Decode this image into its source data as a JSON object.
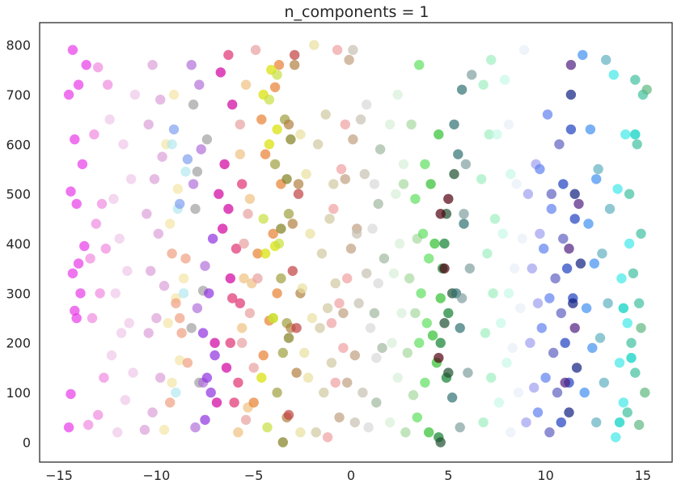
{
  "chart_data": {
    "type": "scatter",
    "title": "n_components = 1",
    "xlabel": "",
    "ylabel": "",
    "xlim": [
      -16,
      16.5
    ],
    "ylim": [
      -40,
      845
    ],
    "xticks": [
      -15,
      -10,
      -5,
      0,
      5,
      10,
      15
    ],
    "xtick_labels": [
      "−15",
      "−10",
      "−5",
      "0",
      "5",
      "10",
      "15"
    ],
    "yticks": [
      0,
      100,
      200,
      300,
      400,
      500,
      600,
      700,
      800
    ],
    "ytick_labels": [
      "0",
      "100",
      "200",
      "300",
      "400",
      "500",
      "600",
      "700",
      "800"
    ],
    "grid": false,
    "legend": "none",
    "marker_alpha": 0.7,
    "series": [
      {
        "color": "#e83be8",
        "x": [
          -14.5,
          -14.4,
          -14.2,
          -13.9,
          -14.3,
          -14.0,
          -13.7,
          -14.1,
          -14.4,
          -13.8,
          -14.2,
          -14.5,
          -14.0,
          -13.6,
          -14.3,
          -14.1
        ],
        "y": [
          30,
          97,
          265,
          300,
          340,
          360,
          395,
          480,
          505,
          560,
          610,
          700,
          720,
          760,
          790,
          250
        ]
      },
      {
        "color": "#f08ae0",
        "x": [
          -13.5,
          -13.0,
          -12.7,
          -13.3,
          -12.9,
          -13.4,
          -12.6,
          -13.1,
          -12.8,
          -13.2,
          -12.5,
          -13.0
        ],
        "y": [
          35,
          55,
          130,
          250,
          300,
          370,
          390,
          440,
          480,
          620,
          720,
          755
        ]
      },
      {
        "color": "#f0c8e8",
        "x": [
          -12.0,
          -11.6,
          -11.2,
          -12.3,
          -11.8,
          -11.4,
          -12.1,
          -11.5,
          -11.9,
          -12.2,
          -11.3,
          -11.7,
          -12.4,
          -11.1
        ],
        "y": [
          20,
          85,
          140,
          175,
          220,
          240,
          300,
          345,
          410,
          490,
          530,
          600,
          650,
          700
        ]
      },
      {
        "color": "#dca0d8",
        "x": [
          -10.6,
          -10.2,
          -9.8,
          -10.4,
          -10.0,
          -9.6,
          -10.3,
          -9.9,
          -10.5,
          -10.1,
          -9.7,
          -10.4,
          -9.8,
          -10.2
        ],
        "y": [
          25,
          60,
          130,
          220,
          250,
          315,
          345,
          420,
          460,
          530,
          575,
          640,
          690,
          760
        ]
      },
      {
        "color": "#f3e6a6",
        "x": [
          -9.6,
          -9.2,
          -8.8,
          -9.4,
          -9.0,
          -8.6,
          -9.3,
          -8.9,
          -9.5,
          -9.1
        ],
        "y": [
          25,
          120,
          165,
          240,
          290,
          330,
          440,
          510,
          600,
          700
        ]
      },
      {
        "color": "#f0a080",
        "x": [
          -9.3,
          -8.7,
          -9.0,
          -8.5,
          -9.2,
          -8.8,
          -8.4
        ],
        "y": [
          80,
          220,
          280,
          370,
          380,
          250,
          160
        ]
      },
      {
        "color": "#b3e8f0",
        "x": [
          -9.0,
          -8.6,
          -8.9,
          -8.5,
          -9.2
        ],
        "y": [
          100,
          300,
          470,
          545,
          600
        ]
      },
      {
        "color": "#80a0f0",
        "x": [
          -8.8,
          -8.4,
          -9.1
        ],
        "y": [
          480,
          570,
          630
        ]
      },
      {
        "color": "#a0a0a0",
        "x": [
          -7.8,
          -8.2,
          -7.6,
          -8.0,
          -7.9,
          -7.4,
          -8.1
        ],
        "y": [
          120,
          230,
          305,
          470,
          545,
          610,
          680
        ]
      },
      {
        "color": "#b070d8",
        "x": [
          -8.0,
          -7.6,
          -7.9,
          -7.5,
          -8.1,
          -7.7,
          -7.8,
          -8.2
        ],
        "y": [
          30,
          120,
          270,
          355,
          520,
          590,
          720,
          760
        ]
      },
      {
        "color": "#9030e0",
        "x": [
          -7.5,
          -7.2,
          -7.4,
          -7.0,
          -7.6,
          -7.3,
          -7.1
        ],
        "y": [
          45,
          100,
          130,
          175,
          220,
          300,
          410
        ]
      },
      {
        "color": "#d000a0",
        "x": [
          -6.9,
          -6.4,
          -7.0,
          -6.2,
          -6.6,
          -6.3,
          -6.8,
          -6.5,
          -6.1,
          -6.7
        ],
        "y": [
          80,
          150,
          200,
          330,
          430,
          470,
          500,
          560,
          680,
          745
        ]
      },
      {
        "color": "#e03070",
        "x": [
          -6.0,
          -5.8,
          -6.2,
          -5.7,
          -6.1,
          -5.9,
          -5.6,
          -6.3
        ],
        "y": [
          80,
          120,
          200,
          280,
          290,
          390,
          520,
          780
        ]
      },
      {
        "color": "#f0c080",
        "x": [
          -5.8,
          -5.3,
          -5.6,
          -5.1,
          -5.5,
          -5.2,
          -5.7,
          -5.4
        ],
        "y": [
          20,
          70,
          230,
          320,
          330,
          490,
          580,
          720
        ]
      },
      {
        "color": "#e8a0a0",
        "x": [
          -5.4,
          -5.0,
          -5.6,
          -5.2,
          -4.8,
          -5.5,
          -5.3,
          -5.7,
          -4.9
        ],
        "y": [
          45,
          150,
          200,
          260,
          330,
          400,
          460,
          640,
          790
        ]
      },
      {
        "color": "#e88030",
        "x": [
          -5.0,
          -4.5,
          -4.2,
          -3.8,
          -4.8,
          -4.0,
          -3.6,
          -4.4,
          -4.6,
          -3.9,
          -3.7
        ],
        "y": [
          80,
          175,
          245,
          300,
          380,
          420,
          520,
          580,
          650,
          715,
          760
        ]
      },
      {
        "color": "#d8e000",
        "x": [
          -4.6,
          -4.0,
          -4.4,
          -3.9,
          -4.2,
          -3.8,
          -4.5,
          -4.1
        ],
        "y": [
          130,
          250,
          380,
          395,
          600,
          630,
          700,
          750
        ]
      },
      {
        "color": "#c8e040",
        "x": [
          -4.3,
          -4.0,
          -3.7,
          -4.5,
          -4.2,
          -3.8
        ],
        "y": [
          30,
          250,
          400,
          450,
          690,
          740
        ]
      },
      {
        "color": "#a0a040",
        "x": [
          -3.8,
          -3.5,
          -3.3,
          -3.6,
          -3.2,
          -3.9,
          -3.4
        ],
        "y": [
          100,
          180,
          240,
          330,
          460,
          560,
          650
        ]
      },
      {
        "color": "#808020",
        "x": [
          -3.5,
          -3.2,
          -3.6,
          -3.3,
          -3.1
        ],
        "y": [
          0,
          210,
          430,
          530,
          610
        ]
      },
      {
        "color": "#b08040",
        "x": [
          -3.3,
          -2.8,
          -3.1,
          -2.6,
          -3.0,
          -2.7,
          -3.2,
          -2.9
        ],
        "y": [
          50,
          140,
          230,
          300,
          440,
          520,
          640,
          760
        ]
      },
      {
        "color": "#c04040",
        "x": [
          -3.2,
          -2.8,
          -3.0,
          -2.7,
          -2.9
        ],
        "y": [
          55,
          230,
          345,
          500,
          780
        ]
      },
      {
        "color": "#e8e0a0",
        "x": [
          -2.6,
          -2.2,
          -2.4,
          -2.0,
          -2.5,
          -2.1,
          -2.3,
          -2.6,
          -1.9
        ],
        "y": [
          20,
          130,
          180,
          250,
          310,
          420,
          540,
          620,
          800
        ]
      },
      {
        "color": "#d0c8a0",
        "x": [
          -1.8,
          -1.4,
          -1.0,
          -1.6,
          -1.2,
          -0.8,
          -1.5,
          -1.1,
          -0.9,
          -1.7,
          -1.3
        ],
        "y": [
          20,
          100,
          160,
          230,
          270,
          320,
          380,
          450,
          520,
          600,
          660
        ]
      },
      {
        "color": "#f0a0a0",
        "x": [
          -1.2,
          -0.8,
          -0.4,
          -1.0,
          -0.6,
          -0.2,
          -0.9,
          -0.5,
          -0.3,
          -0.7
        ],
        "y": [
          10,
          120,
          190,
          240,
          280,
          330,
          470,
          550,
          640,
          790
        ]
      },
      {
        "color": "#c0a080",
        "x": [
          -0.6,
          -0.2,
          0.2,
          -0.4,
          0.0,
          0.3,
          -0.3,
          0.1,
          -0.1
        ],
        "y": [
          50,
          120,
          175,
          260,
          390,
          430,
          530,
          610,
          770
        ]
      },
      {
        "color": "#c8c0b0",
        "x": [
          0.2,
          0.6,
          0.4,
          0.8,
          0.3,
          0.7,
          0.5,
          0.1
        ],
        "y": [
          40,
          100,
          280,
          340,
          420,
          540,
          650,
          790
        ]
      },
      {
        "color": "#d8d8d8",
        "x": [
          0.9,
          1.3,
          1.0,
          1.4,
          1.1,
          1.2,
          0.8
        ],
        "y": [
          30,
          170,
          230,
          320,
          430,
          520,
          680
        ]
      },
      {
        "color": "#a0b8a0",
        "x": [
          1.3,
          1.6,
          1.2,
          1.7,
          1.4,
          1.5
        ],
        "y": [
          80,
          190,
          260,
          370,
          480,
          590
        ]
      },
      {
        "color": "#d8f0d8",
        "x": [
          2.0,
          2.4,
          2.1,
          2.6,
          2.2,
          2.5,
          2.3,
          2.7,
          2.0,
          2.4
        ],
        "y": [
          40,
          130,
          200,
          260,
          340,
          400,
          500,
          560,
          640,
          700
        ]
      },
      {
        "color": "#a8d8a0",
        "x": [
          2.8,
          3.2,
          2.9,
          3.3,
          3.0,
          3.4,
          2.7,
          3.1
        ],
        "y": [
          20,
          95,
          180,
          260,
          330,
          410,
          520,
          640
        ]
      },
      {
        "color": "#60e060",
        "x": [
          3.4,
          3.8,
          3.5,
          3.9,
          3.6,
          4.0,
          3.7,
          3.3,
          3.8,
          3.5
        ],
        "y": [
          50,
          120,
          200,
          240,
          300,
          370,
          420,
          490,
          560,
          760
        ]
      },
      {
        "color": "#30c030",
        "x": [
          4.0,
          4.4,
          4.2,
          4.6,
          4.3,
          4.1,
          4.5
        ],
        "y": [
          20,
          160,
          215,
          290,
          400,
          520,
          620
        ]
      },
      {
        "color": "#108030",
        "x": [
          4.5,
          4.9,
          4.6,
          5.0,
          4.7,
          4.8
        ],
        "y": [
          10,
          130,
          200,
          260,
          350,
          400
        ]
      },
      {
        "color": "#205030",
        "x": [
          4.6,
          5.0,
          4.8,
          5.2,
          4.9,
          5.3
        ],
        "y": [
          0,
          140,
          240,
          300,
          460,
          540
        ]
      },
      {
        "color": "#500010",
        "x": [
          4.5,
          4.8,
          4.6,
          5.0
        ],
        "y": [
          170,
          350,
          460,
          490
        ]
      },
      {
        "color": "#307070",
        "x": [
          5.2,
          5.6,
          5.4,
          5.8,
          5.5,
          5.3,
          5.7
        ],
        "y": [
          90,
          230,
          300,
          440,
          580,
          640,
          710
        ]
      },
      {
        "color": "#80a0a0",
        "x": [
          5.6,
          6.0,
          5.7,
          6.1,
          5.8,
          5.9,
          6.2
        ],
        "y": [
          30,
          140,
          290,
          350,
          460,
          560,
          740
        ]
      },
      {
        "color": "#a0f0c0",
        "x": [
          6.8,
          7.2,
          6.9,
          7.3,
          7.0,
          7.4,
          6.7,
          7.1,
          6.8,
          7.2
        ],
        "y": [
          40,
          130,
          220,
          300,
          380,
          450,
          530,
          620,
          720,
          770
        ]
      },
      {
        "color": "#c8f8e8",
        "x": [
          7.6,
          8.0,
          7.7,
          8.1,
          7.8,
          8.2,
          7.5,
          7.9
        ],
        "y": [
          80,
          160,
          240,
          300,
          420,
          540,
          620,
          730
        ]
      },
      {
        "color": "#e8f0f8",
        "x": [
          8.2,
          8.6,
          8.3,
          8.7,
          8.4,
          8.8,
          8.5,
          8.1,
          8.9
        ],
        "y": [
          20,
          100,
          190,
          270,
          350,
          410,
          520,
          640,
          790
        ]
      },
      {
        "color": "#a0a0f0",
        "x": [
          9.0,
          9.4,
          9.2,
          9.6,
          9.3,
          9.7,
          9.1,
          9.5
        ],
        "y": [
          40,
          110,
          200,
          280,
          350,
          420,
          500,
          560
        ]
      },
      {
        "color": "#6080f0",
        "x": [
          9.6,
          10.0,
          9.8,
          10.2,
          9.9,
          10.3,
          9.7,
          10.1
        ],
        "y": [
          60,
          130,
          230,
          290,
          390,
          470,
          550,
          660
        ]
      },
      {
        "color": "#6060c0",
        "x": [
          10.2,
          10.6,
          10.4,
          10.8,
          10.5,
          10.9,
          10.3,
          10.7
        ],
        "y": [
          20,
          100,
          180,
          260,
          330,
          410,
          500,
          600
        ]
      },
      {
        "color": "#2040c0",
        "x": [
          10.8,
          11.2,
          11.0,
          11.4,
          11.1,
          11.5,
          10.9,
          11.3
        ],
        "y": [
          40,
          120,
          200,
          290,
          350,
          450,
          520,
          630
        ]
      },
      {
        "color": "#102080",
        "x": [
          11.2,
          11.6,
          11.4,
          11.8,
          11.5,
          11.3
        ],
        "y": [
          60,
          150,
          280,
          360,
          500,
          700
        ]
      },
      {
        "color": "#502080",
        "x": [
          11.0,
          11.5,
          11.2,
          11.7,
          11.3
        ],
        "y": [
          120,
          230,
          390,
          480,
          760
        ]
      },
      {
        "color": "#4090f0",
        "x": [
          12.0,
          12.4,
          12.1,
          12.5,
          12.2,
          12.6,
          12.3,
          11.9
        ],
        "y": [
          100,
          190,
          270,
          360,
          440,
          530,
          630,
          780
        ]
      },
      {
        "color": "#60b0c0",
        "x": [
          12.6,
          13.0,
          12.8,
          13.2,
          12.9,
          13.3,
          12.7,
          13.1
        ],
        "y": [
          40,
          120,
          210,
          280,
          380,
          470,
          550,
          770
        ]
      },
      {
        "color": "#40e8e8",
        "x": [
          13.6,
          14.0,
          13.8,
          14.2,
          13.9,
          14.3,
          13.7,
          14.1,
          13.5
        ],
        "y": [
          10,
          80,
          160,
          240,
          330,
          400,
          510,
          620,
          740
        ]
      },
      {
        "color": "#40c0a0",
        "x": [
          14.2,
          14.6,
          14.4,
          14.8,
          14.5,
          14.9,
          14.3,
          14.7,
          15.0,
          14.6
        ],
        "y": [
          60,
          140,
          200,
          280,
          340,
          420,
          500,
          600,
          700,
          730
        ]
      },
      {
        "color": "#00d0c0",
        "x": [
          13.8,
          14.4,
          14.0,
          14.6
        ],
        "y": [
          40,
          170,
          270,
          620
        ]
      },
      {
        "color": "#60b880",
        "x": [
          14.8,
          15.1,
          14.9,
          15.2
        ],
        "y": [
          35,
          100,
          230,
          710
        ]
      }
    ]
  }
}
